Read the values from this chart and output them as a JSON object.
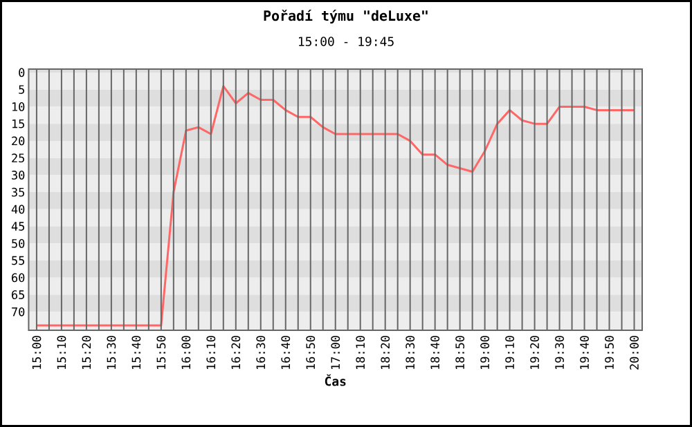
{
  "chart_data": {
    "type": "line",
    "title": "Pořadí týmu \"deLuxe\"",
    "subtitle": "15:00 - 19:45",
    "xlabel": "Čas",
    "categories": [
      "15:00",
      null,
      "15:10",
      null,
      "15:20",
      null,
      "15:30",
      null,
      "15:40",
      null,
      "15:50",
      null,
      "16:00",
      null,
      "16:10",
      null,
      "16:20",
      null,
      "16:30",
      null,
      "16:40",
      null,
      "16:50",
      null,
      "17:00",
      null,
      "18:10",
      null,
      "18:20",
      null,
      "18:30",
      null,
      "18:40",
      null,
      "18:50",
      null,
      "19:00",
      null,
      "19:10",
      null,
      "19:20",
      null,
      "19:30",
      null,
      "19:40",
      null,
      "19:50",
      null,
      "20:00"
    ],
    "values": [
      74,
      74,
      74,
      74,
      74,
      74,
      74,
      74,
      74,
      74,
      74,
      35,
      17,
      16,
      18,
      4,
      9,
      6,
      8,
      8,
      11,
      13,
      13,
      16,
      18,
      18,
      18,
      18,
      18,
      18,
      20,
      24,
      24,
      27,
      28,
      29,
      23,
      15,
      11,
      14,
      15,
      15,
      10,
      10,
      10,
      11,
      11,
      11,
      11
    ],
    "color": "#ff6666",
    "ylim": [
      75.4,
      -1
    ],
    "yticks": [
      0,
      5,
      10,
      15,
      20,
      25,
      30,
      35,
      40,
      45,
      50,
      55,
      60,
      65,
      70
    ],
    "grid": "x",
    "marker": "none",
    "line_style": "solid"
  }
}
